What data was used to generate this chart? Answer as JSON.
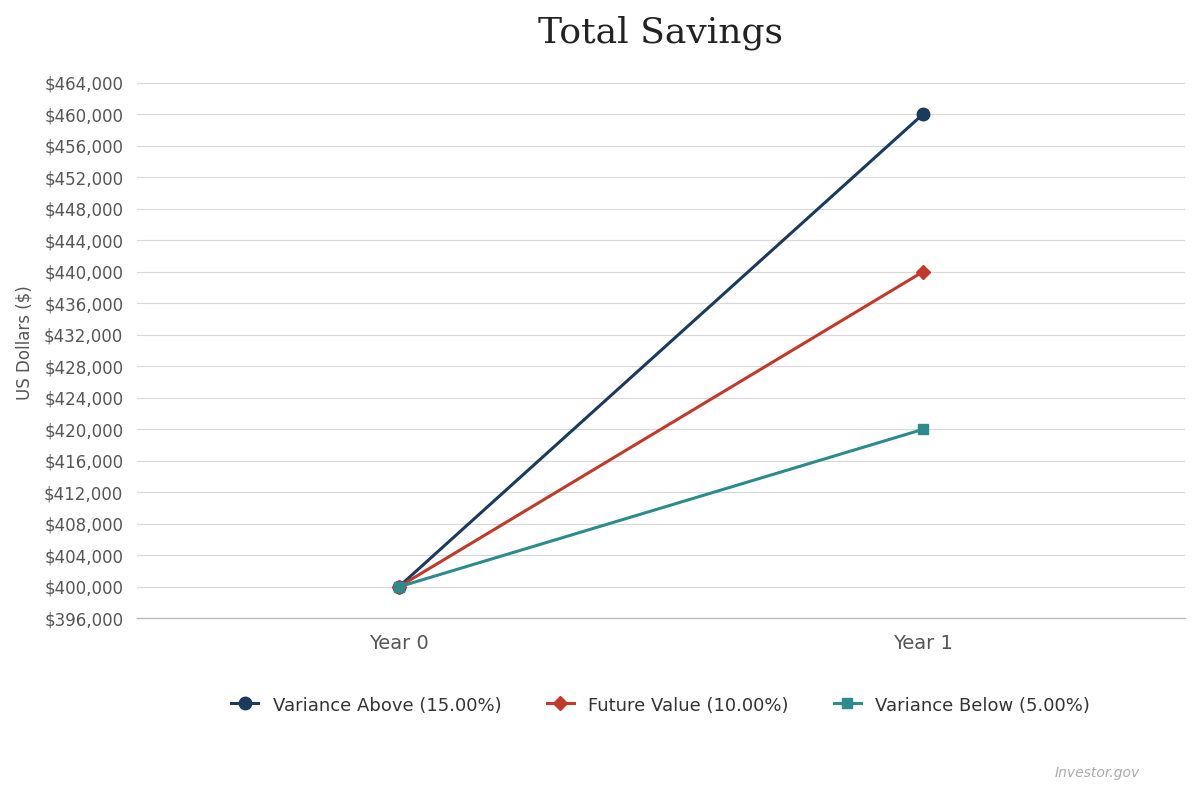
{
  "title": "Total Savings",
  "xlabel": "",
  "ylabel": "US Dollars ($)",
  "x_labels": [
    "Year 0",
    "Year 1"
  ],
  "series": [
    {
      "label": "Variance Above (15.00%)",
      "values": [
        400000,
        460000
      ],
      "color": "#1b3a5c",
      "marker": "o",
      "marker_size": 9,
      "linewidth": 2.2
    },
    {
      "label": "Future Value (10.00%)",
      "values": [
        400000,
        440000
      ],
      "color": "#c0392b",
      "marker": "D",
      "marker_size": 7,
      "linewidth": 2.2
    },
    {
      "label": "Variance Below (5.00%)",
      "values": [
        400000,
        420000
      ],
      "color": "#2e8b8b",
      "marker": "s",
      "marker_size": 7,
      "linewidth": 2.2
    }
  ],
  "ylim": [
    396000,
    466000
  ],
  "ytick_min": 396000,
  "ytick_max": 464000,
  "ytick_step": 4000,
  "background_color": "#ffffff",
  "plot_bg_color": "#ffffff",
  "grid_color": "#d8d8d8",
  "title_fontsize": 26,
  "axis_label_fontsize": 12,
  "tick_fontsize": 12,
  "legend_fontsize": 13,
  "watermark": "Investor.gov"
}
